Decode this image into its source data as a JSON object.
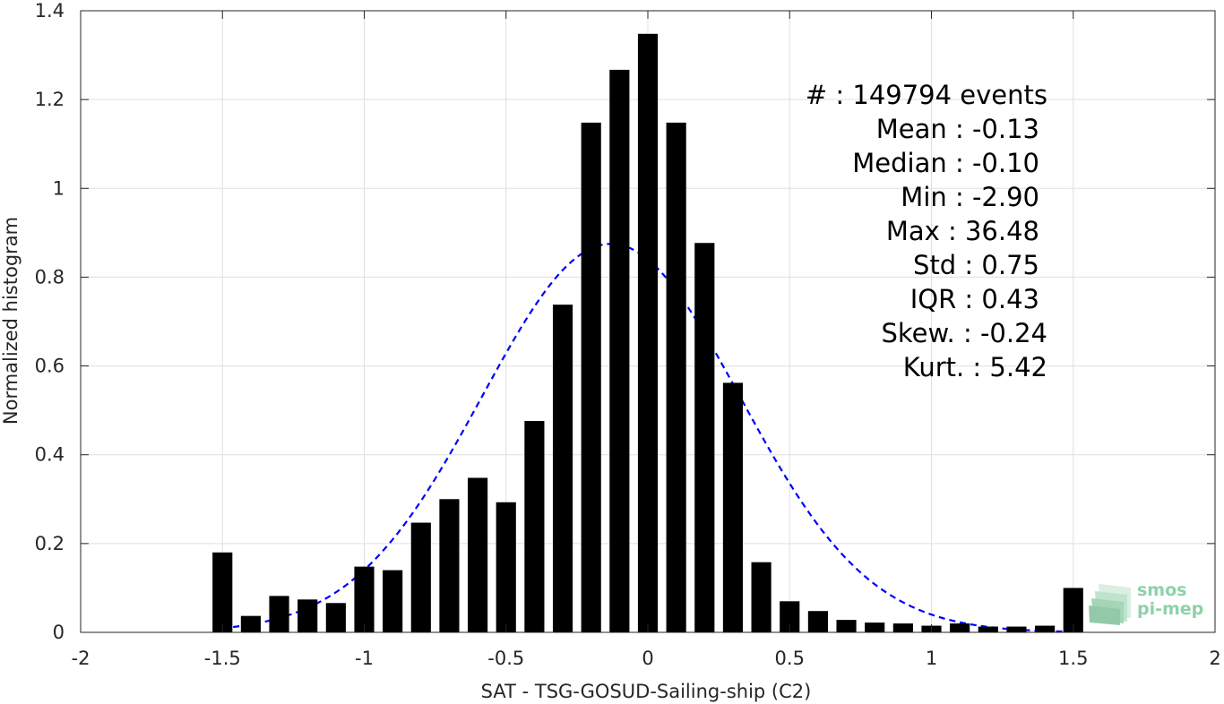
{
  "chart_data": {
    "type": "bar",
    "xlabel": "SAT - TSG-GOSUD-Sailing-ship (C2)",
    "ylabel": "Normalized histogram",
    "xlim": [
      -2,
      2
    ],
    "ylim": [
      0,
      1.4
    ],
    "xticks": [
      -2,
      -1.5,
      -1,
      -0.5,
      0,
      0.5,
      1,
      1.5,
      2
    ],
    "xtick_labels": [
      "-2",
      "-1.5",
      "-1",
      "-0.5",
      "0",
      "0.5",
      "1",
      "1.5",
      "2"
    ],
    "yticks": [
      0,
      0.2,
      0.4,
      0.6,
      0.8,
      1,
      1.2,
      1.4
    ],
    "ytick_labels": [
      "0",
      "0.2",
      "0.4",
      "0.6",
      "0.8",
      "1",
      "1.2",
      "1.4"
    ],
    "grid": true,
    "bar_color": "#000000",
    "bar_width": 0.07,
    "bins": [
      -1.5,
      -1.4,
      -1.3,
      -1.2,
      -1.1,
      -1.0,
      -0.9,
      -0.8,
      -0.7,
      -0.6,
      -0.5,
      -0.4,
      -0.3,
      -0.2,
      -0.1,
      0.0,
      0.1,
      0.2,
      0.3,
      0.4,
      0.5,
      0.6,
      0.7,
      0.8,
      0.9,
      1.0,
      1.1,
      1.2,
      1.3,
      1.4,
      1.5
    ],
    "values": [
      0.18,
      0.037,
      0.082,
      0.074,
      0.066,
      0.148,
      0.14,
      0.247,
      0.3,
      0.348,
      0.293,
      0.476,
      0.738,
      1.148,
      1.267,
      1.348,
      1.148,
      0.877,
      0.562,
      0.158,
      0.07,
      0.048,
      0.028,
      0.022,
      0.02,
      0.015,
      0.02,
      0.013,
      0.013,
      0.015,
      0.1
    ],
    "fit_curve": {
      "style": "dashed",
      "color": "#0000ff",
      "mean": -0.13,
      "std": 0.455,
      "peak": 0.875,
      "x_range": [
        -1.5,
        1.5
      ]
    },
    "stats_lines": [
      "#  : 149794 events",
      "Mean : -0.13",
      "Median : -0.10",
      "Min : -2.90",
      "Max : 36.48",
      "Std : 0.75",
      "IQR : 0.43",
      "Skew. : -0.24",
      "Kurt. : 5.42"
    ]
  },
  "logo": {
    "line1": "smos",
    "line2": "pi-mep"
  }
}
